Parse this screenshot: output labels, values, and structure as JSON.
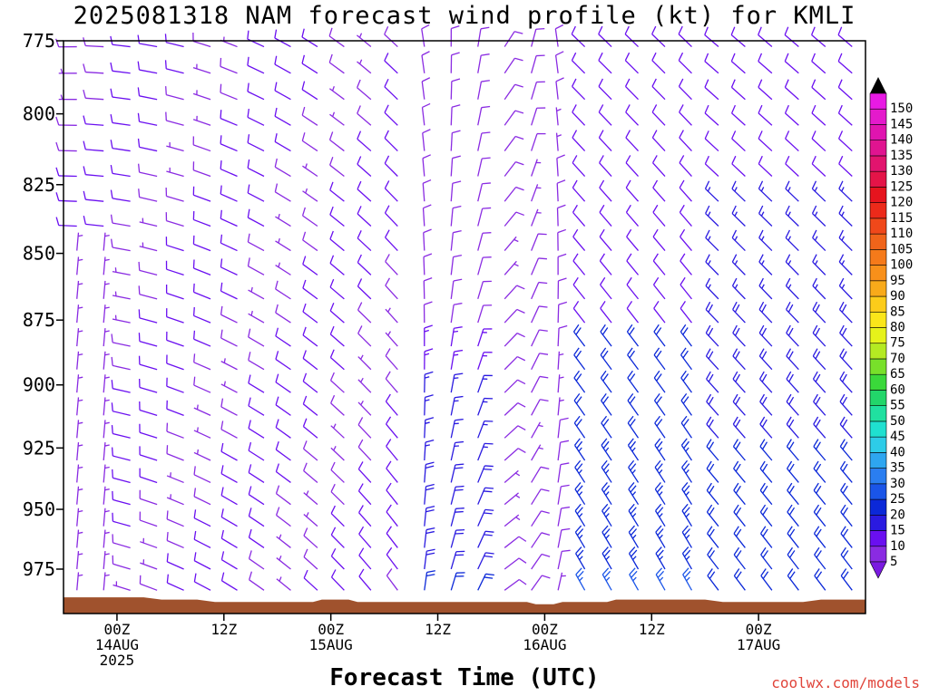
{
  "title": "2025081318 NAM forecast wind profile (kt) for KMLI",
  "x_axis_title": "Forecast Time (UTC)",
  "credit": "coolwx.com/models",
  "chart_data": {
    "type": "wind-barb profile",
    "title": "2025081318 NAM forecast wind profile (kt) for KMLI",
    "xlabel": "Forecast Time (UTC)",
    "ylabel": "",
    "y_ticks": [
      "775",
      "800",
      "825",
      "850",
      "875",
      "900",
      "925",
      "950",
      "975"
    ],
    "y_range_hpa": [
      775,
      994
    ],
    "x_range_hours_since_00Z_14AUG": [
      -6,
      84
    ],
    "x_ticks": [
      {
        "hour": 0,
        "lines": [
          "00Z",
          "14AUG",
          "2025"
        ]
      },
      {
        "hour": 12,
        "lines": [
          "12Z"
        ]
      },
      {
        "hour": 24,
        "lines": [
          "00Z",
          "15AUG"
        ]
      },
      {
        "hour": 36,
        "lines": [
          "12Z"
        ]
      },
      {
        "hour": 48,
        "lines": [
          "00Z",
          "16AUG"
        ]
      },
      {
        "hour": 60,
        "lines": [
          "12Z"
        ]
      },
      {
        "hour": 72,
        "lines": [
          "00Z",
          "17AUG"
        ]
      }
    ],
    "colorbar": {
      "unit": "kt",
      "levels": [
        5,
        10,
        15,
        20,
        25,
        30,
        35,
        40,
        45,
        50,
        55,
        60,
        65,
        70,
        75,
        80,
        85,
        90,
        95,
        100,
        105,
        110,
        115,
        120,
        125,
        130,
        135,
        140,
        145,
        150
      ],
      "colors": [
        "#8a2be2",
        "#6a0ff0",
        "#2a1ae0",
        "#0b28d8",
        "#1a55e8",
        "#2a7ef0",
        "#2ea6f0",
        "#2dcce8",
        "#1fe0d0",
        "#20e0a0",
        "#22d66a",
        "#3ad83a",
        "#78e02a",
        "#b4ea22",
        "#e6f21a",
        "#fae61a",
        "#fccc1a",
        "#f8aa1a",
        "#f8901a",
        "#f57a1a",
        "#f0641a",
        "#f0481a",
        "#ec2a1a",
        "#e6141e",
        "#e41448",
        "#e2146e",
        "#e01490",
        "#e014b0",
        "#e41acc",
        "#e81ae4"
      ],
      "top_cap_color": "#000000",
      "bottom_cap_color": "#7a1ae0"
    },
    "terrain_color": "#a0522d",
    "series": [
      {
        "region": "00Z14AUG-09Z15AUG",
        "direction_from": "west-northwest",
        "speed_kt": [
          5,
          15
        ]
      },
      {
        "region": "09Z15AUG-12Z15AUG low levels",
        "direction_from": "north",
        "speed_kt": [
          10,
          20
        ]
      },
      {
        "region": "15Z15AUG-00Z16AUG",
        "direction_from": "north-northeast",
        "speed_kt": [
          5,
          15
        ]
      },
      {
        "region": "03Z16AUG-12Z16AUG low levels",
        "direction_from": "north-northwest",
        "speed_kt": [
          15,
          30
        ]
      },
      {
        "region": "12Z16AUG-09Z17AUG",
        "direction_from": "north-northwest",
        "speed_kt": [
          10,
          25
        ]
      }
    ]
  }
}
